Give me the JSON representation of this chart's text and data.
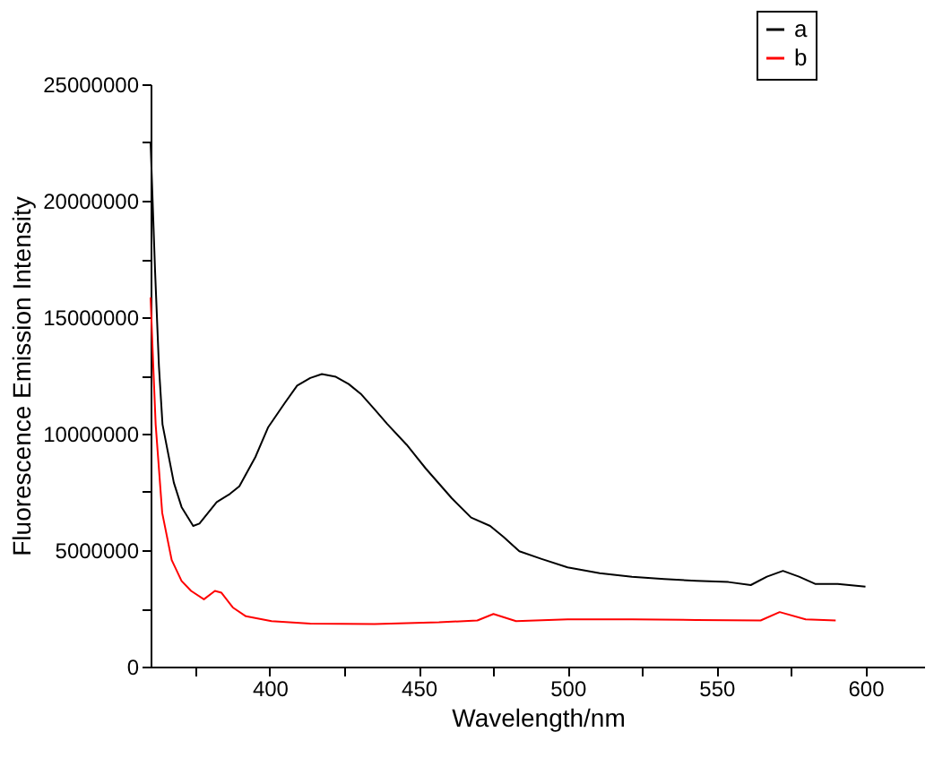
{
  "chart_data": {
    "type": "line",
    "xlabel": "Wavelength/nm",
    "ylabel": "Fluorescence Emission Intensity",
    "xlim": [
      360,
      620
    ],
    "ylim": [
      0,
      25000000
    ],
    "xticks": [
      {
        "value": 375,
        "label": null
      },
      400,
      {
        "value": 425,
        "label": null
      },
      450,
      {
        "value": 475,
        "label": null
      },
      500,
      {
        "value": 525,
        "label": null
      },
      550,
      {
        "value": 575,
        "label": null
      },
      600
    ],
    "yticks": [
      0,
      {
        "value": 2500000,
        "label": null
      },
      5000000,
      {
        "value": 7500000,
        "label": null
      },
      10000000,
      {
        "value": 12500000,
        "label": null
      },
      15000000,
      {
        "value": 17500000,
        "label": null
      },
      20000000,
      {
        "value": 22500000,
        "label": null
      },
      25000000
    ],
    "grid": false,
    "legend": "top right",
    "line_style": "solid",
    "marker": "none",
    "series": [
      {
        "name": "a",
        "color": "#000000",
        "x": [
          360,
          361.5,
          362.8,
          364,
          367.8,
          370.4,
          374.3,
          376.4,
          382.2,
          386.6,
          389.8,
          395.2,
          399.5,
          404.9,
          409.2,
          413.6,
          417.5,
          422.2,
          426.5,
          430.8,
          435.2,
          439.5,
          446,
          452.4,
          461.1,
          467.6,
          474,
          478.4,
          483.8,
          491.3,
          500,
          510.8,
          521.6,
          532.4,
          543.2,
          554,
          561.5,
          566.9,
          572.3,
          577.7,
          583.1,
          590.7,
          600
        ],
        "values": [
          22500000,
          17000000,
          12900000,
          10400000,
          7900000,
          6850000,
          6040000,
          6140000,
          7060000,
          7410000,
          7740000,
          9000000,
          10280000,
          11290000,
          12060000,
          12390000,
          12560000,
          12440000,
          12130000,
          11680000,
          11040000,
          10410000,
          9520000,
          8500000,
          7230000,
          6400000,
          6040000,
          5580000,
          4950000,
          4620000,
          4260000,
          4010000,
          3860000,
          3760000,
          3680000,
          3630000,
          3500000,
          3860000,
          4110000,
          3860000,
          3550000,
          3550000,
          3430000
        ]
      },
      {
        "name": "b",
        "color": "#ff0000",
        "x": [
          360,
          360.9,
          361.7,
          363.9,
          367.1,
          370.4,
          373.6,
          377.9,
          381.6,
          383.8,
          387.6,
          392,
          400.6,
          413.6,
          435.2,
          456.8,
          469.7,
          475.1,
          482.7,
          500,
          521.6,
          543.2,
          564.8,
          571.2,
          579.9,
          590
        ],
        "values": [
          15850000,
          12900000,
          10400000,
          6600000,
          4570000,
          3680000,
          3250000,
          2890000,
          3250000,
          3170000,
          2540000,
          2160000,
          1950000,
          1850000,
          1830000,
          1900000,
          1980000,
          2260000,
          1950000,
          2030000,
          2030000,
          2000000,
          1980000,
          2340000,
          2030000,
          1980000
        ]
      }
    ]
  }
}
